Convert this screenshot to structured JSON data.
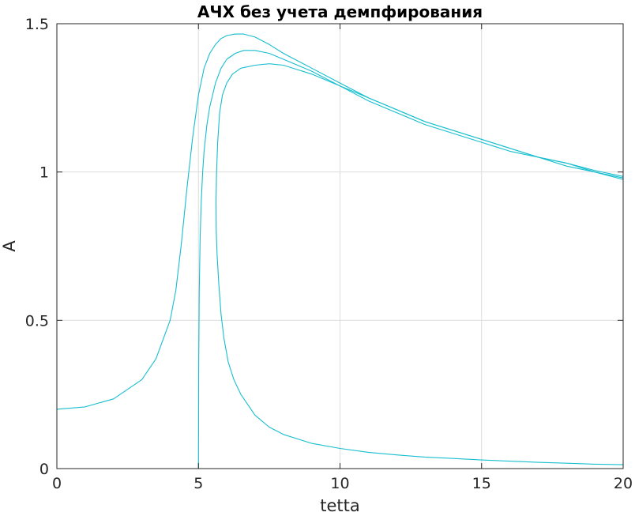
{
  "chart_data": {
    "type": "line",
    "title": "АЧХ без учета демпфирования",
    "xlabel": "tetta",
    "ylabel": "A",
    "xlim": [
      0,
      20
    ],
    "ylim": [
      0,
      1.5
    ],
    "xticks": [
      0,
      5,
      10,
      15,
      20
    ],
    "yticks": [
      0,
      0.5,
      1,
      1.5
    ],
    "xtick_labels": [
      "0",
      "5",
      "10",
      "15",
      "20"
    ],
    "ytick_labels": [
      "0",
      "0.5",
      "1",
      "1.5"
    ],
    "grid": true,
    "line_color": "#17becf",
    "series": [
      {
        "x": [
          0,
          1,
          2,
          3,
          3.5,
          4,
          4.2,
          4.4,
          4.6,
          4.8,
          5.0,
          5.2,
          5.4,
          5.6,
          5.8,
          6.0,
          6.3,
          6.6,
          7.0,
          7.5,
          8,
          9,
          10,
          11,
          12,
          13,
          14,
          15,
          16,
          17,
          18,
          19,
          20
        ],
        "y": [
          0.2,
          0.208,
          0.235,
          0.3,
          0.37,
          0.5,
          0.6,
          0.76,
          0.95,
          1.12,
          1.26,
          1.35,
          1.4,
          1.43,
          1.45,
          1.46,
          1.465,
          1.465,
          1.455,
          1.43,
          1.4,
          1.35,
          1.3,
          1.25,
          1.21,
          1.17,
          1.14,
          1.11,
          1.08,
          1.05,
          1.03,
          1.005,
          0.985
        ]
      },
      {
        "x": [
          5.0,
          5.01,
          5.03,
          5.06,
          5.1,
          5.15,
          5.2,
          5.3,
          5.4,
          5.6,
          5.8,
          6.0,
          6.3,
          6.6,
          7.0,
          7.5,
          8,
          9,
          10,
          11,
          12,
          13,
          14,
          15,
          16,
          17,
          18,
          19,
          20
        ],
        "y": [
          0,
          0.35,
          0.6,
          0.78,
          0.9,
          1.0,
          1.07,
          1.16,
          1.22,
          1.3,
          1.35,
          1.38,
          1.4,
          1.41,
          1.41,
          1.4,
          1.38,
          1.34,
          1.29,
          1.25,
          1.21,
          1.17,
          1.14,
          1.11,
          1.08,
          1.05,
          1.03,
          1.0,
          0.98
        ]
      },
      {
        "x": [
          7.5,
          7.0,
          6.5,
          6.2,
          6.0,
          5.85,
          5.75,
          5.68,
          5.64,
          5.62,
          5.63,
          5.66,
          5.72,
          5.8,
          5.9,
          6.05,
          6.25,
          6.5,
          7,
          7.5,
          8,
          9,
          10,
          11,
          12,
          13,
          14,
          15,
          16,
          17,
          18,
          19,
          20
        ],
        "y": [
          1.365,
          1.36,
          1.35,
          1.33,
          1.3,
          1.26,
          1.2,
          1.1,
          1.0,
          0.9,
          0.8,
          0.72,
          0.62,
          0.52,
          0.44,
          0.36,
          0.3,
          0.25,
          0.18,
          0.14,
          0.115,
          0.085,
          0.068,
          0.055,
          0.046,
          0.039,
          0.034,
          0.029,
          0.025,
          0.021,
          0.018,
          0.015,
          0.013
        ]
      },
      {
        "x": [
          7.5,
          8,
          9,
          10,
          11,
          12,
          13,
          14,
          15,
          16,
          17,
          18,
          19,
          20
        ],
        "y": [
          1.365,
          1.36,
          1.33,
          1.29,
          1.24,
          1.2,
          1.16,
          1.13,
          1.1,
          1.07,
          1.05,
          1.02,
          1.0,
          0.975
        ]
      }
    ]
  }
}
